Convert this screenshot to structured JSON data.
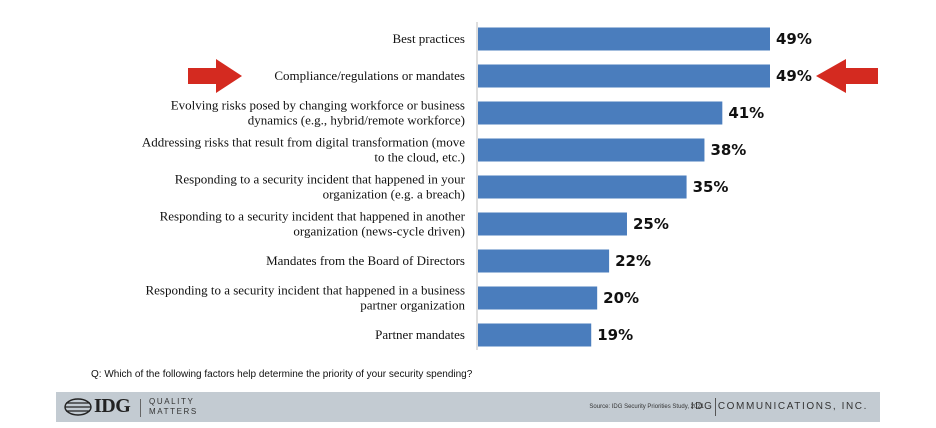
{
  "chart_data": {
    "type": "bar",
    "orientation": "horizontal",
    "categories": [
      [
        "Best practices"
      ],
      [
        "Compliance/regulations or mandates"
      ],
      [
        "Evolving risks posed by changing workforce or business",
        "dynamics (e.g., hybrid/remote workforce)"
      ],
      [
        "Addressing risks that result from digital transformation (move",
        "to the cloud, etc.)"
      ],
      [
        "Responding to a security incident that happened in your",
        "organization (e.g. a breach)"
      ],
      [
        "Responding to a security incident that happened in another",
        "organization (news-cycle driven)"
      ],
      [
        "Mandates from the Board of Directors"
      ],
      [
        "Responding to a security incident that happened in a business",
        "partner organization"
      ],
      [
        "Partner mandates"
      ]
    ],
    "values": [
      49,
      49,
      41,
      38,
      35,
      25,
      22,
      20,
      19
    ],
    "value_labels": [
      "49%",
      "49%",
      "41%",
      "38%",
      "35%",
      "25%",
      "22%",
      "20%",
      "19%"
    ],
    "highlighted_index": 1,
    "xlim": [
      0,
      49
    ],
    "grid": false,
    "title": "",
    "xlabel": "",
    "ylabel": ""
  },
  "colors": {
    "bar": "#4a7dbd",
    "arrow": "#d42a20",
    "footer": "#c3cbd2"
  },
  "question": "Q: Which of the following factors help determine the priority of your security spending?",
  "footer": {
    "logo": "IDG",
    "tagline_line1": "QUALITY",
    "tagline_line2": "MATTERS",
    "source": "Source: IDG Security Priorities Study, 2021",
    "company": "IDG COMMUNICATIONS, INC."
  }
}
